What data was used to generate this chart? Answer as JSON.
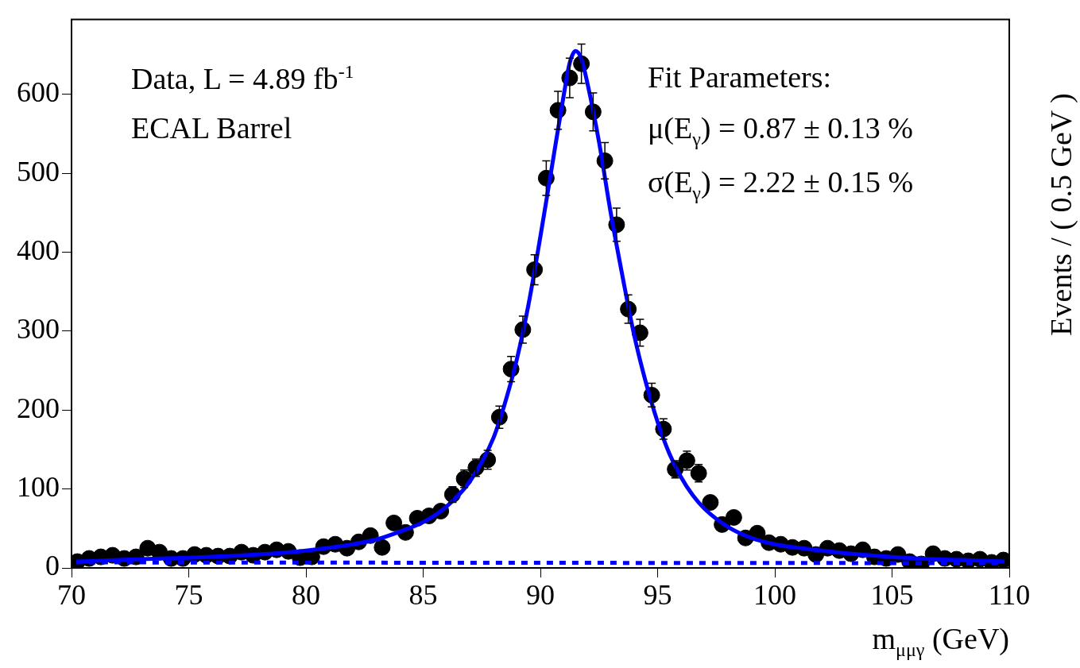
{
  "chart_data": {
    "type": "scatter",
    "xlabel": "m$_{μμγ}$ (GeV)",
    "ylabel": "Events / ( 0.5 GeV )",
    "annotations": [
      "Data, L = 4.89 fb$^{-1}$",
      "ECAL Barrel",
      "Fit Parameters:",
      "μ(E$_{γ}$) = 0.87 ± 0.13 %",
      "σ(E$_{γ}$) = 2.22 ± 0.15 %"
    ],
    "xlim": [
      70,
      110
    ],
    "xticks": [
      70,
      75,
      80,
      85,
      90,
      95,
      100,
      105,
      110
    ],
    "ylim": [
      0,
      695
    ],
    "yticks": [
      0,
      100,
      200,
      300,
      400,
      500,
      600
    ],
    "grid": false,
    "legend": false,
    "series": [
      {
        "color": "#000000",
        "marker": "circle",
        "x": [
          70.25,
          70.75,
          71.25,
          71.75,
          72.25,
          72.75,
          73.25,
          73.75,
          74.25,
          74.75,
          75.25,
          75.75,
          76.25,
          76.75,
          77.25,
          77.75,
          78.25,
          78.75,
          79.25,
          79.75,
          80.25,
          80.75,
          81.25,
          81.75,
          82.25,
          82.75,
          83.25,
          83.75,
          84.25,
          84.75,
          85.25,
          85.75,
          86.25,
          86.75,
          87.25,
          87.75,
          88.25,
          88.75,
          89.25,
          89.75,
          90.25,
          90.75,
          91.25,
          91.75,
          92.25,
          92.75,
          93.25,
          93.75,
          94.25,
          94.75,
          95.25,
          95.75,
          96.25,
          96.75,
          97.25,
          97.75,
          98.25,
          98.75,
          99.25,
          99.75,
          100.25,
          100.75,
          101.25,
          101.75,
          102.25,
          102.75,
          103.25,
          103.75,
          104.25,
          104.75,
          105.25,
          105.75,
          106.25,
          106.75,
          107.25,
          107.75,
          108.25,
          108.75,
          109.25,
          109.75
        ],
        "values": [
          8,
          12,
          14,
          16,
          12,
          14,
          25,
          20,
          12,
          12,
          17,
          16,
          15,
          15,
          20,
          16,
          20,
          23,
          21,
          13,
          14,
          27,
          30,
          25,
          33,
          41,
          26,
          57,
          45,
          63,
          66,
          72,
          93,
          113,
          127,
          137,
          191,
          252,
          302,
          378,
          494,
          580,
          621,
          639,
          578,
          516,
          435,
          328,
          298,
          219,
          176,
          125,
          136,
          120,
          83,
          55,
          64,
          38,
          44,
          32,
          30,
          26,
          25,
          17,
          25,
          22,
          18,
          23,
          14,
          12,
          17,
          8,
          5,
          18,
          12,
          11,
          9,
          11,
          7,
          10
        ],
        "errors": [
          null,
          null,
          null,
          null,
          null,
          null,
          null,
          null,
          null,
          null,
          null,
          null,
          null,
          null,
          null,
          null,
          null,
          null,
          null,
          null,
          null,
          null,
          null,
          null,
          null,
          null,
          null,
          null,
          null,
          null,
          null,
          null,
          10,
          11,
          11,
          12,
          14,
          16,
          17,
          19,
          22,
          24,
          25,
          25,
          24,
          23,
          21,
          18,
          17,
          15,
          13,
          11,
          12,
          11,
          null,
          null,
          null,
          null,
          null,
          null,
          null,
          null,
          null,
          null,
          null,
          null,
          null,
          null,
          null,
          null,
          null,
          null,
          null,
          null,
          null,
          null,
          null,
          null,
          null,
          null
        ]
      },
      {
        "type": "line",
        "color": "#0000ff",
        "line_style": "solid",
        "x": [
          70.2,
          72,
          74,
          76,
          78,
          80,
          82,
          83,
          84,
          85,
          86,
          87,
          88,
          88.5,
          89,
          89.5,
          90,
          90.5,
          91,
          91.25,
          91.5,
          91.75,
          92,
          92.5,
          93,
          93.5,
          94,
          94.5,
          95,
          95.5,
          96,
          96.5,
          97,
          98,
          99,
          100,
          102,
          104,
          106,
          108,
          109.8
        ],
        "values": [
          8,
          10,
          12,
          14,
          17,
          22,
          30,
          36,
          46,
          58,
          78,
          110,
          165,
          210,
          265,
          335,
          420,
          510,
          600,
          640,
          655,
          645,
          615,
          540,
          450,
          370,
          295,
          235,
          185,
          145,
          115,
          92,
          75,
          52,
          38,
          30,
          22,
          16,
          12,
          10,
          8
        ]
      },
      {
        "type": "line",
        "color": "#0000ff",
        "line_style": "dotted",
        "x": [
          70.2,
          109.8
        ],
        "values": [
          7,
          6
        ]
      }
    ]
  }
}
